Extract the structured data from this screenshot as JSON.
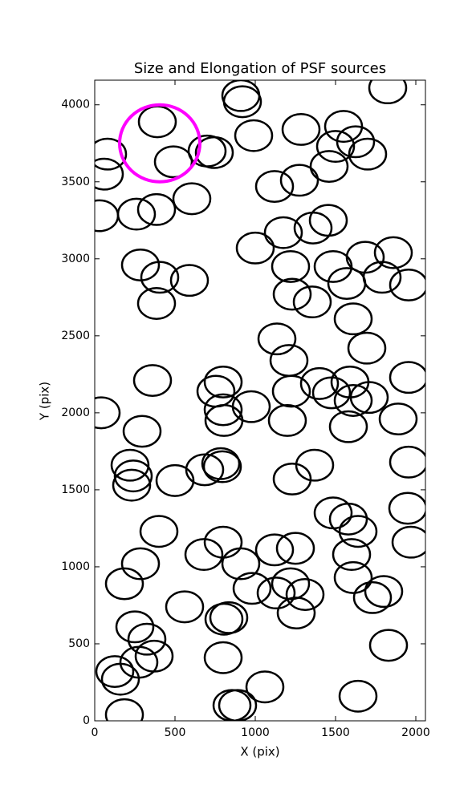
{
  "chart_data": {
    "type": "scatter",
    "title": "Size and Elongation of PSF sources",
    "x_label": "X (pix)",
    "y_label": "Y (pix)",
    "xlim": [
      0,
      2060
    ],
    "ylim": [
      0,
      4160
    ],
    "xticks": [
      0,
      500,
      1000,
      1500,
      2000
    ],
    "yticks": [
      0,
      500,
      1000,
      1500,
      2000,
      2500,
      3000,
      3500,
      4000
    ],
    "marker": "ellipse",
    "ellipse_width": 230,
    "ellipse_height": 200,
    "color": "#000000",
    "x": [
      1825,
      910,
      920,
      390,
      80,
      60,
      990,
      1285,
      1550,
      1500,
      1625,
      1700,
      490,
      700,
      745,
      1120,
      1275,
      1460,
      30,
      260,
      385,
      605,
      1360,
      1455,
      1175,
      1000,
      285,
      405,
      590,
      385,
      1220,
      1485,
      1685,
      1860,
      1790,
      1955,
      1570,
      1230,
      1355,
      1135,
      1610,
      1695,
      1210,
      360,
      800,
      755,
      1400,
      1225,
      1475,
      1590,
      1610,
      1710,
      1955,
      40,
      800,
      805,
      975,
      1200,
      1890,
      1580,
      295,
      220,
      240,
      230,
      685,
      785,
      795,
      1370,
      1230,
      1955,
      500,
      400,
      1485,
      1580,
      1640,
      800,
      680,
      910,
      1120,
      1250,
      1600,
      1970,
      1950,
      285,
      185,
      980,
      1130,
      1220,
      1310,
      1610,
      1800,
      1730,
      560,
      250,
      325,
      835,
      805,
      1255,
      370,
      275,
      125,
      160,
      800,
      1060,
      1640,
      185,
      855,
      890,
      1830
    ],
    "y": [
      4110,
      4060,
      4020,
      3890,
      3680,
      3550,
      3800,
      3840,
      3860,
      3730,
      3760,
      3680,
      3630,
      3700,
      3690,
      3470,
      3510,
      3600,
      3280,
      3290,
      3320,
      3390,
      3200,
      3250,
      3170,
      3070,
      2960,
      2880,
      2860,
      2710,
      2950,
      2950,
      3010,
      3040,
      2880,
      2830,
      2840,
      2770,
      2720,
      2480,
      2610,
      2420,
      2340,
      2210,
      2200,
      2140,
      2190,
      2140,
      2130,
      2200,
      2080,
      2100,
      2230,
      2000,
      2020,
      1950,
      2040,
      1950,
      1960,
      1910,
      1880,
      1660,
      1590,
      1530,
      1630,
      1670,
      1650,
      1660,
      1570,
      1680,
      1560,
      1230,
      1350,
      1310,
      1230,
      1160,
      1080,
      1020,
      1110,
      1120,
      1080,
      1160,
      1380,
      1020,
      890,
      860,
      830,
      890,
      820,
      930,
      840,
      800,
      740,
      610,
      530,
      670,
      660,
      700,
      420,
      380,
      320,
      270,
      410,
      220,
      160,
      40,
      100,
      100,
      490
    ],
    "highlight": {
      "x": 405,
      "y": 3750,
      "radius": 250,
      "color": "#ff00ff"
    }
  }
}
